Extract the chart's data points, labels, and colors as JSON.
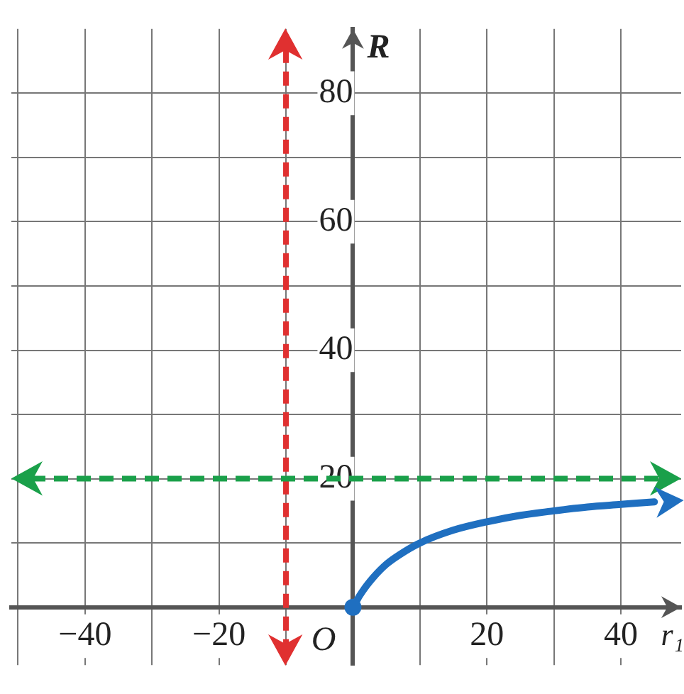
{
  "chart_data": {
    "type": "line",
    "xlabel": "r₁",
    "ylabel": "R",
    "series": [
      {
        "color": "#1f6fc0",
        "x": [
          0,
          1,
          2,
          3,
          5,
          7,
          10,
          15,
          20,
          25,
          30,
          35,
          40,
          45
        ],
        "values": [
          0,
          1.8,
          3.3,
          4.6,
          6.7,
          8.2,
          10,
          12,
          13.3,
          14.3,
          15,
          15.6,
          16,
          16.4
        ]
      }
    ],
    "xlim": [
      -51,
      49
    ],
    "ylim": [
      -9,
      90
    ],
    "xticks": [
      {
        "value": -50,
        "label": null
      },
      {
        "value": -40,
        "label": "−40"
      },
      {
        "value": -30,
        "label": null
      },
      {
        "value": -20,
        "label": "−20"
      },
      {
        "value": -10,
        "label": null
      },
      {
        "value": 0,
        "label": null
      },
      {
        "value": 10,
        "label": null
      },
      20,
      {
        "value": 30,
        "label": null
      },
      40
    ],
    "yticks": [
      {
        "value": 0,
        "label": null
      },
      {
        "value": 10,
        "label": null
      },
      20,
      {
        "value": 30,
        "label": null
      },
      40,
      {
        "value": 50,
        "label": null
      },
      60,
      {
        "value": 70,
        "label": null
      },
      80
    ],
    "ref_lines": [
      {
        "axis": "x",
        "value": -10,
        "color": "#e03030",
        "line_style": "dashed"
      },
      {
        "axis": "y",
        "value": 20,
        "color": "#1aa04a",
        "line_style": "dashed"
      }
    ],
    "annotations": [
      {
        "text": "O",
        "x": 0,
        "y": 0
      }
    ],
    "grid": true,
    "legend": false,
    "marker": "none",
    "line_style": "solid"
  }
}
